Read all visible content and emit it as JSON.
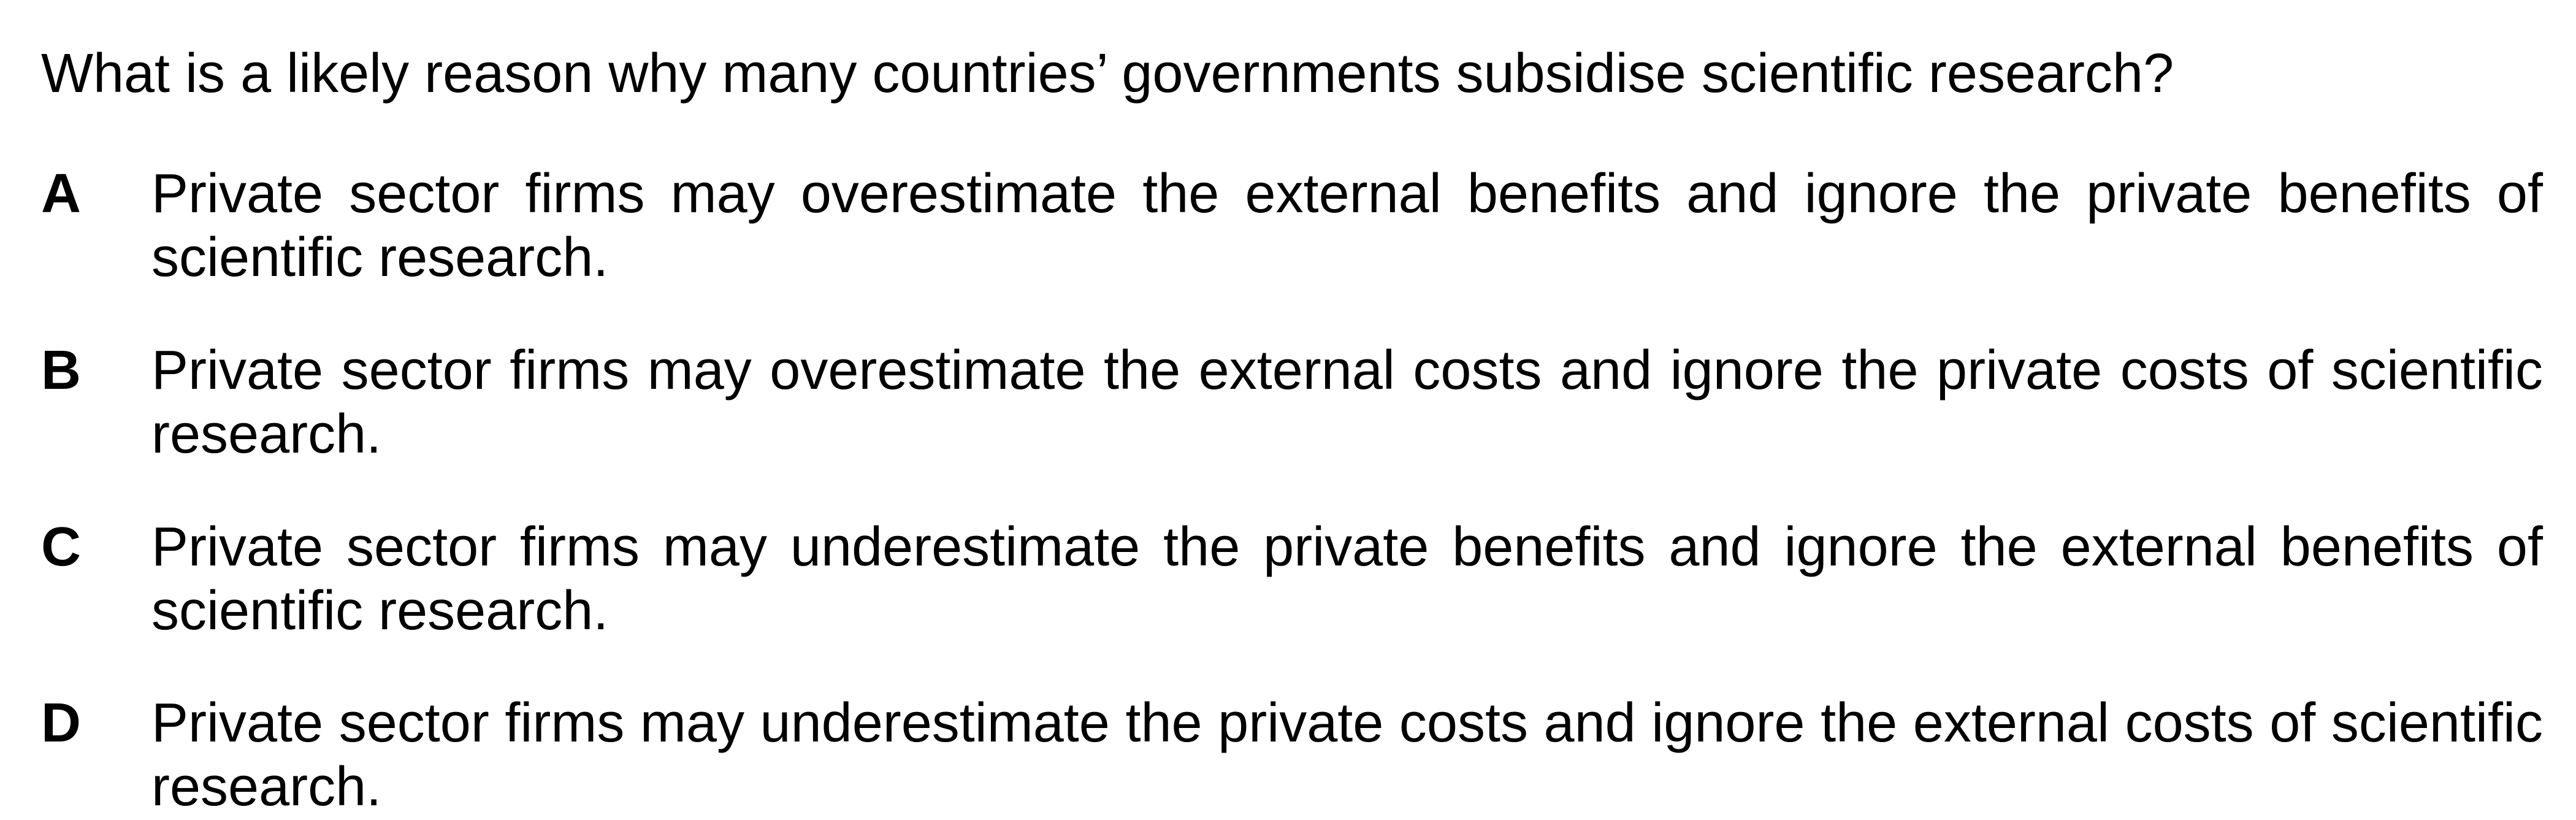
{
  "question": {
    "text": "What is a likely reason why many countries’ governments subsidise scientific research?"
  },
  "options": [
    {
      "letter": "A",
      "text": "Private sector firms may overestimate the external benefits and ignore the private benefits of scientific research."
    },
    {
      "letter": "B",
      "text": "Private sector firms may overestimate the external costs and ignore the private costs of scientific research."
    },
    {
      "letter": "C",
      "text": "Private sector firms may underestimate the private benefits and ignore the external benefits of scientific research."
    },
    {
      "letter": "D",
      "text": "Private sector firms may underestimate the private costs and ignore the external costs of scientific research."
    }
  ]
}
